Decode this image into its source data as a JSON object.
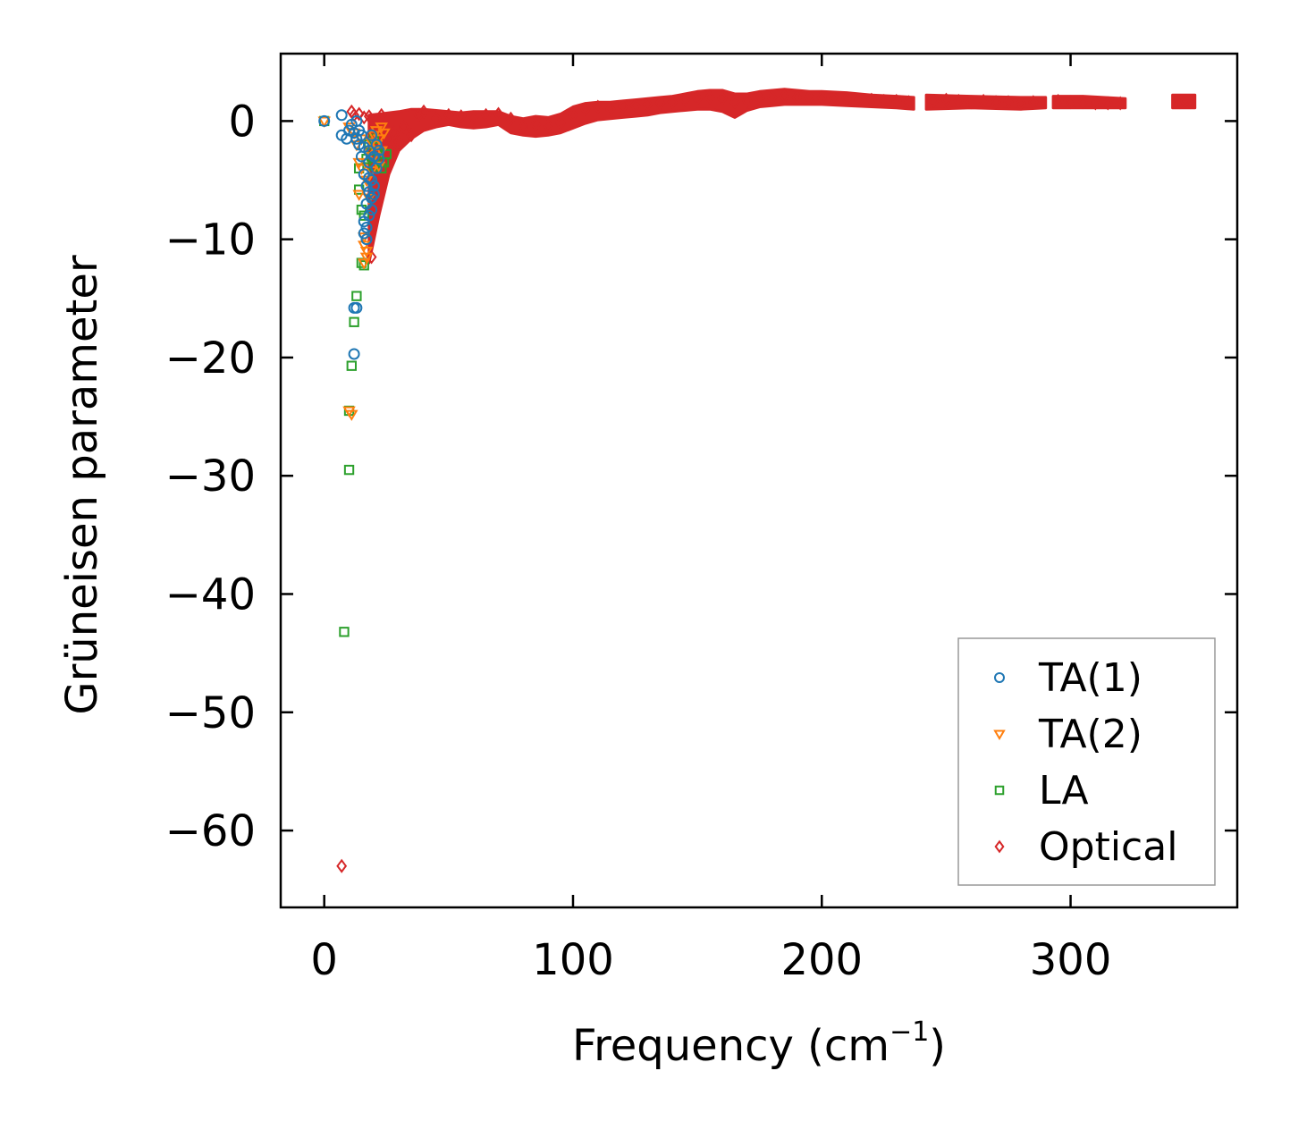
{
  "chart_data": {
    "type": "scatter",
    "title": "",
    "xlabel": "Frequency (cm",
    "xlabel_sup": "−1",
    "xlabel_end": ")",
    "ylabel": "Grüneisen parameter",
    "xlim": [
      -17.5,
      367
    ],
    "ylim": [
      -66.5,
      5.7
    ],
    "xticks": [
      0,
      100,
      200,
      300
    ],
    "yticks": [
      0,
      -10,
      -20,
      -30,
      -40,
      -50,
      -60
    ],
    "xtick_labels": [
      "0",
      "100",
      "200",
      "300"
    ],
    "ytick_labels": [
      "0",
      "−10",
      "−20",
      "−30",
      "−40",
      "−50",
      "−60"
    ],
    "legend": {
      "position": "lower-right"
    },
    "series": [
      {
        "name": "TA(1)",
        "marker": "circle",
        "color": "#1f77b4",
        "points": [
          [
            0,
            0
          ],
          [
            7,
            0.5
          ],
          [
            7,
            -1.2
          ],
          [
            9,
            -1.5
          ],
          [
            10,
            -0.8
          ],
          [
            11,
            -0.3
          ],
          [
            12,
            -1.0
          ],
          [
            13,
            0
          ],
          [
            13,
            -1.5
          ],
          [
            14,
            -0.8
          ],
          [
            14,
            -2.0
          ],
          [
            15,
            -3.0
          ],
          [
            15,
            -1.2
          ],
          [
            16,
            -4.5
          ],
          [
            16,
            -2.2
          ],
          [
            16,
            -8.5
          ],
          [
            16,
            -9.5
          ],
          [
            17,
            -5.5
          ],
          [
            17,
            -7.0
          ],
          [
            17,
            -10.0
          ],
          [
            17,
            -9.0
          ],
          [
            18,
            -6.0
          ],
          [
            18,
            -8.0
          ],
          [
            18,
            -3.5
          ],
          [
            18,
            -4.8
          ],
          [
            18,
            -2.5
          ],
          [
            19,
            -6.5
          ],
          [
            19,
            -5.0
          ],
          [
            19,
            -7.5
          ],
          [
            19,
            -1.2
          ],
          [
            20,
            -5.5
          ],
          [
            20,
            -6.2
          ],
          [
            20,
            -3.0
          ],
          [
            21,
            -2.0
          ],
          [
            21,
            -4.0
          ],
          [
            22,
            -2.5
          ],
          [
            22,
            -3.2
          ],
          [
            12,
            -15.8
          ],
          [
            13,
            -15.8
          ],
          [
            12,
            -19.7
          ]
        ]
      },
      {
        "name": "TA(2)",
        "marker": "triangle_down",
        "color": "#ff7f0e",
        "points": [
          [
            0,
            0
          ],
          [
            10,
            -0.5
          ],
          [
            12,
            -1.0
          ],
          [
            13,
            -2.0
          ],
          [
            14,
            -3.5
          ],
          [
            14,
            -6.2
          ],
          [
            15,
            -4.0
          ],
          [
            15,
            -1.5
          ],
          [
            16,
            -9.8
          ],
          [
            16,
            -10.5
          ],
          [
            17,
            -5.0
          ],
          [
            17,
            -11.0
          ],
          [
            18,
            -2.5
          ],
          [
            18,
            -6.5
          ],
          [
            19,
            -1.8
          ],
          [
            19,
            -4.2
          ],
          [
            20,
            -3.0
          ],
          [
            20,
            -1.2
          ],
          [
            21,
            -2.0
          ],
          [
            21,
            -0.8
          ],
          [
            22,
            -1.5
          ],
          [
            22,
            -3.8
          ],
          [
            23,
            -0.5
          ],
          [
            23,
            -2.5
          ],
          [
            24,
            -1.0
          ],
          [
            10,
            -24.5
          ],
          [
            11,
            -24.8
          ],
          [
            17,
            -11.5
          ],
          [
            16,
            -12.0
          ]
        ]
      },
      {
        "name": "LA",
        "marker": "square",
        "color": "#2ca02c",
        "points": [
          [
            0,
            0
          ],
          [
            14,
            -4.0
          ],
          [
            14,
            -5.8
          ],
          [
            15,
            -7.5
          ],
          [
            15,
            -12.0
          ],
          [
            16,
            -8.0
          ],
          [
            16,
            -12.2
          ],
          [
            17,
            -3.2
          ],
          [
            18,
            -2.0
          ],
          [
            19,
            -3.0
          ],
          [
            20,
            -1.5
          ],
          [
            20,
            -3.8
          ],
          [
            21,
            -2.5
          ],
          [
            22,
            -3.2
          ],
          [
            23,
            -4.0
          ],
          [
            24,
            -3.5
          ],
          [
            25,
            -2.8
          ],
          [
            13,
            -14.8
          ],
          [
            12,
            -17.0
          ],
          [
            11,
            -20.7
          ],
          [
            10,
            -24.5
          ],
          [
            10,
            -29.5
          ],
          [
            8,
            -43.2
          ]
        ]
      },
      {
        "name": "Optical",
        "marker": "diamond",
        "color": "#d62728",
        "points": [
          [
            7,
            -63.0
          ],
          [
            11,
            0.8
          ],
          [
            12,
            0.5
          ],
          [
            14,
            0.6
          ],
          [
            16,
            0.3
          ],
          [
            18,
            0.4
          ],
          [
            19,
            -11.5
          ],
          [
            20,
            -0.5
          ],
          [
            22,
            -2.0
          ],
          [
            23,
            0.5
          ],
          [
            25,
            -1.5
          ],
          [
            26,
            -3.0
          ],
          [
            27,
            -2.5
          ],
          [
            28,
            -1.0
          ],
          [
            30,
            -1.8
          ],
          [
            32,
            -0.5
          ],
          [
            35,
            -1.2
          ],
          [
            38,
            0.5
          ],
          [
            40,
            0.8
          ],
          [
            45,
            0.2
          ],
          [
            50,
            0.5
          ],
          [
            55,
            0.4
          ],
          [
            60,
            0.3
          ],
          [
            65,
            0.5
          ],
          [
            70,
            0.6
          ],
          [
            75,
            0.2
          ],
          [
            80,
            -0.5
          ],
          [
            85,
            -0.3
          ],
          [
            90,
            -0.4
          ],
          [
            95,
            -0.2
          ],
          [
            100,
            0.5
          ],
          [
            105,
            1.0
          ],
          [
            110,
            1.2
          ],
          [
            115,
            1.0
          ],
          [
            120,
            1.2
          ],
          [
            125,
            1.3
          ],
          [
            130,
            1.4
          ],
          [
            135,
            1.5
          ],
          [
            140,
            1.6
          ],
          [
            145,
            1.8
          ],
          [
            150,
            1.9
          ],
          [
            155,
            2.0
          ],
          [
            160,
            1.9
          ],
          [
            165,
            1.6
          ],
          [
            170,
            1.7
          ],
          [
            175,
            1.9
          ],
          [
            180,
            2.0
          ],
          [
            185,
            2.1
          ],
          [
            190,
            2.0
          ],
          [
            195,
            2.0
          ],
          [
            200,
            2.0
          ],
          [
            205,
            1.9
          ],
          [
            210,
            1.9
          ],
          [
            215,
            1.8
          ],
          [
            220,
            1.8
          ],
          [
            225,
            1.7
          ],
          [
            230,
            1.7
          ],
          [
            235,
            1.6
          ],
          [
            245,
            1.7
          ],
          [
            250,
            1.8
          ],
          [
            255,
            1.7
          ],
          [
            260,
            1.6
          ],
          [
            265,
            1.7
          ],
          [
            270,
            1.6
          ],
          [
            275,
            1.6
          ],
          [
            280,
            1.5
          ],
          [
            285,
            1.6
          ],
          [
            295,
            1.7
          ],
          [
            300,
            1.6
          ],
          [
            305,
            1.6
          ],
          [
            310,
            1.5
          ],
          [
            315,
            1.5
          ],
          [
            320,
            1.5
          ],
          [
            344,
            1.6
          ],
          [
            346,
            1.7
          ],
          [
            348,
            1.6
          ]
        ],
        "bands": [
          {
            "x": [
              18,
              22,
              26,
              30,
              35,
              40,
              45,
              50,
              55,
              60,
              65,
              70,
              75,
              80,
              85,
              90,
              95,
              100,
              105,
              110,
              115,
              120,
              125,
              130,
              135,
              140,
              145,
              150,
              155,
              160,
              165,
              170,
              175,
              180,
              185,
              190,
              195,
              200,
              210,
              220,
              230,
              237
            ],
            "upper": [
              0.5,
              0.6,
              0.7,
              0.8,
              1.0,
              1.0,
              0.9,
              0.8,
              0.7,
              0.8,
              0.8,
              0.8,
              0.4,
              0.2,
              0.4,
              0.3,
              0.6,
              1.2,
              1.5,
              1.6,
              1.6,
              1.7,
              1.8,
              1.9,
              2.0,
              2.1,
              2.3,
              2.5,
              2.6,
              2.6,
              2.3,
              2.3,
              2.5,
              2.6,
              2.7,
              2.6,
              2.5,
              2.5,
              2.4,
              2.2,
              2.1,
              2.0
            ],
            "lower": [
              -12.0,
              -8.0,
              -4.5,
              -2.5,
              -1.5,
              -0.8,
              -0.5,
              -0.3,
              -0.5,
              -0.6,
              -0.5,
              -0.3,
              -1.0,
              -1.2,
              -1.3,
              -1.2,
              -1.0,
              -0.6,
              -0.2,
              0.1,
              0.2,
              0.3,
              0.4,
              0.5,
              0.7,
              0.8,
              0.9,
              1.0,
              1.0,
              0.8,
              0.3,
              0.9,
              1.2,
              1.3,
              1.4,
              1.4,
              1.4,
              1.4,
              1.3,
              1.2,
              1.1,
              1.0
            ]
          },
          {
            "x": [
              242,
              260,
              280,
              290
            ],
            "upper": [
              2.2,
              2.1,
              2.0,
              2.0
            ],
            "lower": [
              1.0,
              1.1,
              1.0,
              1.1
            ]
          },
          {
            "x": [
              293,
              305,
              322
            ],
            "upper": [
              2.1,
              2.1,
              1.9
            ],
            "lower": [
              1.1,
              1.1,
              1.1
            ]
          },
          {
            "x": [
              341,
              350
            ],
            "upper": [
              2.2,
              2.2
            ],
            "lower": [
              1.1,
              1.1
            ]
          }
        ]
      }
    ]
  }
}
